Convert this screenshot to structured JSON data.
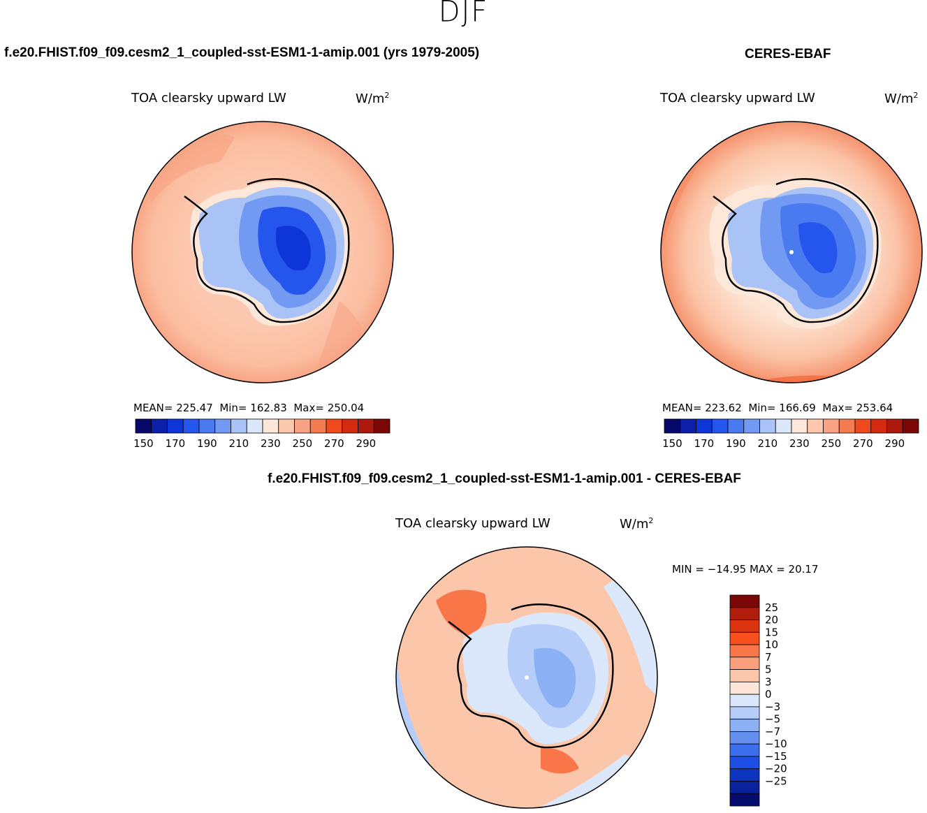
{
  "figure": {
    "season": "DJF",
    "model_case": "f.e20.FHIST.f09_f09.cesm2_1_coupled-sst-ESM1-1-amip.001 (yrs 1979-2005)",
    "obs_case": "CERES-EBAF",
    "diff_title": "f.e20.FHIST.f09_f09.cesm2_1_coupled-sst-ESM1-1-amip.001 - CERES-EBAF"
  },
  "panels": {
    "model": {
      "variable": "TOA clearsky upward LW",
      "units": "W/m",
      "units_exp": "2",
      "mean_label": "MEAN=",
      "mean": "225.47",
      "min_label": "Min=",
      "min": "162.83",
      "max_label": "Max=",
      "max": "250.04"
    },
    "obs": {
      "variable": "TOA clearsky upward LW",
      "units": "W/m",
      "units_exp": "2",
      "mean_label": "MEAN=",
      "mean": "223.62",
      "min_label": "Min=",
      "min": "166.69",
      "max_label": "Max=",
      "max": "253.64"
    },
    "diff": {
      "variable": "TOA clearsky upward LW",
      "units": "W/m",
      "units_exp": "2",
      "minmax_text": "MIN = −14.95  MAX =   20.17"
    }
  },
  "colorbars": {
    "field": {
      "colors": [
        "#08086b",
        "#0b1fa8",
        "#0e35d8",
        "#2456ee",
        "#4a7af0",
        "#739af2",
        "#a9c3f7",
        "#dbe8fb",
        "#fde7d9",
        "#fcc7ad",
        "#f9a384",
        "#f57b50",
        "#ee4a1e",
        "#d42a10",
        "#ab1a0c",
        "#7a0606"
      ],
      "tick_labels": [
        "150",
        "170",
        "190",
        "210",
        "230",
        "250",
        "270",
        "290"
      ]
    },
    "diff": {
      "colors": [
        "#7a0606",
        "#b11d0a",
        "#db350f",
        "#f7501d",
        "#f97649",
        "#fba07c",
        "#fcc6ab",
        "#fde6d8",
        "#dbe8fb",
        "#b5cdf8",
        "#8cb0f4",
        "#6590f0",
        "#3b6ded",
        "#1d4fe4",
        "#0e35c0",
        "#0a229b",
        "#050c6d"
      ],
      "tick_labels": [
        "25",
        "20",
        "15",
        "10",
        "7",
        "5",
        "3",
        "0",
        "−3",
        "−5",
        "−7",
        "−10",
        "−15",
        "−20",
        "−25"
      ]
    }
  }
}
